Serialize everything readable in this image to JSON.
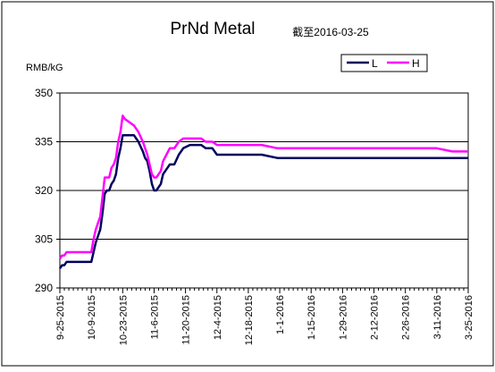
{
  "chart_data": {
    "type": "line",
    "title": "PrNd Metal",
    "subtitle": "截至2016-03-25",
    "ylabel": "RMB/kG",
    "xlabel": "",
    "ylim": [
      290,
      350
    ],
    "yticks": [
      290,
      305,
      320,
      335,
      350
    ],
    "grid": true,
    "legend": "top-right",
    "x_tick_labels": [
      "9-25-2015",
      "10-9-2015",
      "10-23-2015",
      "11-6-2015",
      "11-20-2015",
      "12-4-2015",
      "12-18-2015",
      "1-1-2016",
      "1-15-2016",
      "1-29-2016",
      "2-12-2016",
      "2-26-2016",
      "3-11-2016",
      "3-25-2016"
    ],
    "series": [
      {
        "name": "L",
        "color": "#000060",
        "x": [
          "9-25-2015",
          "9-26-2015",
          "9-27-2015",
          "9-28-2015",
          "10-9-2015",
          "10-10-2015",
          "10-11-2015",
          "10-12-2015",
          "10-13-2015",
          "10-14-2015",
          "10-15-2015",
          "10-16-2015",
          "10-17-2015",
          "10-18-2015",
          "10-19-2015",
          "10-20-2015",
          "10-21-2015",
          "10-22-2015",
          "10-23-2015",
          "10-24-2015",
          "10-28-2015",
          "10-30-2015",
          "11-1-2015",
          "11-2-2015",
          "11-3-2015",
          "11-4-2015",
          "11-5-2015",
          "11-6-2015",
          "11-7-2015",
          "11-8-2015",
          "11-9-2015",
          "11-10-2015",
          "11-13-2015",
          "11-15-2015",
          "11-17-2015",
          "11-19-2015",
          "11-22-2015",
          "11-27-2015",
          "11-29-2015",
          "12-2-2015",
          "12-4-2015",
          "12-6-2015",
          "12-24-2015",
          "12-31-2015",
          "1-1-2016",
          "2-24-2016",
          "2-26-2016",
          "3-7-2016",
          "3-11-2016",
          "3-18-2016",
          "3-25-2016"
        ],
        "values": [
          296,
          297,
          297,
          298,
          298,
          301,
          304,
          306,
          308,
          313,
          319,
          320,
          320,
          322,
          323,
          325,
          330,
          333,
          337,
          337,
          337,
          335,
          332,
          330,
          329,
          326,
          322,
          320,
          320,
          321,
          322,
          325,
          328,
          328,
          331,
          333,
          334,
          334,
          333,
          333,
          331,
          331,
          331,
          330,
          330,
          330,
          330,
          330,
          330,
          330,
          330
        ]
      },
      {
        "name": "H",
        "color": "#ff00ff",
        "x": [
          "9-25-2015",
          "9-26-2015",
          "9-27-2015",
          "9-28-2015",
          "10-9-2015",
          "10-10-2015",
          "10-11-2015",
          "10-12-2015",
          "10-13-2015",
          "10-14-2015",
          "10-15-2015",
          "10-16-2015",
          "10-17-2015",
          "10-18-2015",
          "10-19-2015",
          "10-20-2015",
          "10-21-2015",
          "10-22-2015",
          "10-23-2015",
          "10-24-2015",
          "10-28-2015",
          "10-30-2015",
          "11-1-2015",
          "11-2-2015",
          "11-3-2015",
          "11-4-2015",
          "11-5-2015",
          "11-6-2015",
          "11-7-2015",
          "11-8-2015",
          "11-9-2015",
          "11-10-2015",
          "11-13-2015",
          "11-15-2015",
          "11-17-2015",
          "11-19-2015",
          "11-22-2015",
          "11-27-2015",
          "11-29-2015",
          "12-2-2015",
          "12-4-2015",
          "12-6-2015",
          "12-24-2015",
          "12-31-2015",
          "1-1-2016",
          "2-24-2016",
          "2-26-2016",
          "3-7-2016",
          "3-11-2016",
          "3-18-2016",
          "3-25-2016"
        ],
        "values": [
          299,
          300,
          300,
          301,
          301,
          305,
          308,
          310,
          312,
          318,
          324,
          324,
          324,
          327,
          328,
          330,
          335,
          338,
          343,
          342,
          340,
          338,
          335,
          333,
          331,
          328,
          325,
          324,
          324,
          325,
          326,
          329,
          333,
          333,
          335,
          336,
          336,
          336,
          335,
          335,
          334,
          334,
          334,
          333,
          333,
          333,
          333,
          333,
          333,
          332,
          332
        ]
      }
    ]
  }
}
